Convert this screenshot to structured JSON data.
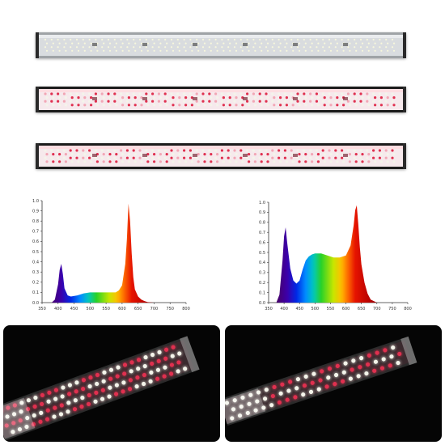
{
  "colors": {
    "led_white": "#f4f4ea",
    "led_red": "#e0304f",
    "led_pink": "#f2a6b5",
    "housing_light": "#d9dcdf",
    "housing_dark": "#1c1c1c"
  },
  "lamps": [
    {
      "variant": "white-only",
      "rows": 4
    },
    {
      "variant": "red-white",
      "rows": 4
    },
    {
      "variant": "white-red",
      "rows": 4
    }
  ],
  "chart_data": [
    {
      "type": "area",
      "x_ticks": [
        "350",
        "400",
        "450",
        "500",
        "550",
        "600",
        "650",
        "700",
        "750",
        "800"
      ],
      "y_ticks": [
        "0.0",
        "0.1",
        "0.2",
        "0.3",
        "0.4",
        "0.5",
        "0.6",
        "0.7",
        "0.8",
        "0.9",
        "1.0"
      ],
      "xlim": [
        350,
        800
      ],
      "ylim": [
        0,
        1.0
      ],
      "x": [
        380,
        390,
        400,
        405,
        410,
        415,
        420,
        430,
        440,
        460,
        480,
        500,
        520,
        540,
        560,
        580,
        590,
        600,
        610,
        615,
        620,
        625,
        630,
        635,
        640,
        650,
        660,
        670,
        680,
        700
      ],
      "y": [
        0.0,
        0.03,
        0.18,
        0.32,
        0.38,
        0.28,
        0.14,
        0.07,
        0.06,
        0.07,
        0.09,
        0.1,
        0.1,
        0.1,
        0.1,
        0.1,
        0.12,
        0.17,
        0.38,
        0.62,
        0.97,
        0.8,
        0.48,
        0.25,
        0.13,
        0.06,
        0.03,
        0.015,
        0.005,
        0.0
      ]
    },
    {
      "type": "area",
      "x_ticks": [
        "350",
        "400",
        "450",
        "500",
        "550",
        "600",
        "650",
        "700",
        "750",
        "800"
      ],
      "y_ticks": [
        "0.0",
        "0.1",
        "0.2",
        "0.3",
        "0.4",
        "0.5",
        "0.6",
        "0.7",
        "0.8",
        "0.9",
        "1.0"
      ],
      "xlim": [
        350,
        800
      ],
      "ylim": [
        0,
        1.0
      ],
      "x": [
        375,
        385,
        395,
        400,
        405,
        410,
        420,
        430,
        440,
        450,
        460,
        470,
        480,
        490,
        500,
        520,
        540,
        560,
        580,
        600,
        615,
        625,
        630,
        635,
        640,
        645,
        650,
        660,
        670,
        680,
        700
      ],
      "y": [
        0.0,
        0.08,
        0.42,
        0.66,
        0.75,
        0.6,
        0.34,
        0.22,
        0.19,
        0.22,
        0.33,
        0.42,
        0.46,
        0.48,
        0.49,
        0.49,
        0.47,
        0.45,
        0.45,
        0.47,
        0.57,
        0.77,
        0.92,
        0.97,
        0.78,
        0.55,
        0.38,
        0.2,
        0.09,
        0.03,
        0.0
      ]
    }
  ]
}
